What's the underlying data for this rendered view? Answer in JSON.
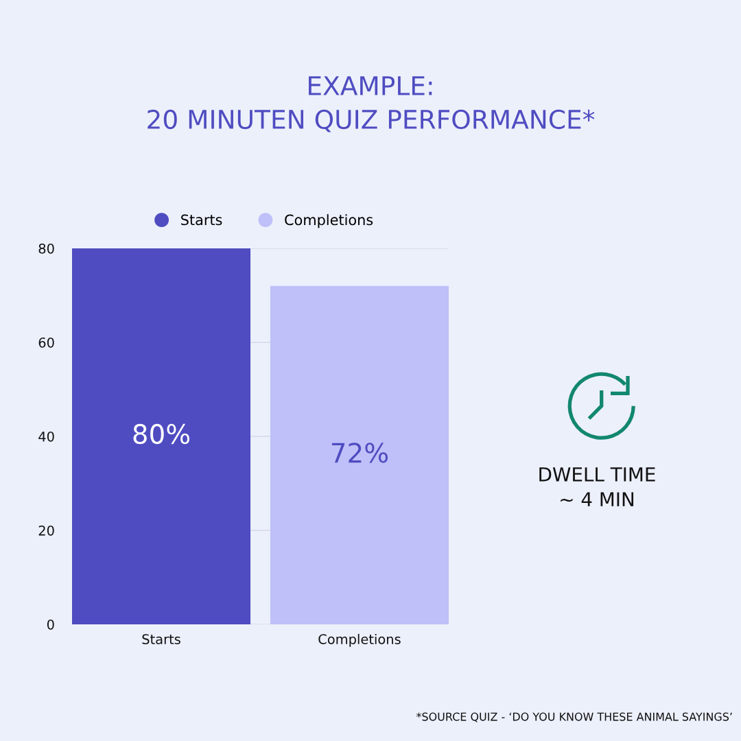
{
  "chart_data": {
    "type": "bar",
    "title": "EXAMPLE:\n20 MINUTEN QUIZ PERFORMANCE*",
    "categories": [
      "Starts",
      "Completions"
    ],
    "series": [
      {
        "name": "Starts",
        "color": "#4f4cc1",
        "values": [
          80,
          null
        ],
        "value_labels": [
          "80%",
          null
        ]
      },
      {
        "name": "Completions",
        "color": "#bfc0f9",
        "values": [
          null,
          72
        ],
        "value_labels": [
          null,
          "72%"
        ]
      }
    ],
    "ylim": [
      0,
      80
    ],
    "yticks": [
      0,
      20,
      40,
      60,
      80
    ],
    "grid": "y",
    "legend": "top",
    "annotations": [
      "DWELL TIME\n~ 4 MIN",
      "*SOURCE QUIZ - ‘DO YOU KNOW THESE ANIMAL SAYINGS’"
    ]
  }
}
